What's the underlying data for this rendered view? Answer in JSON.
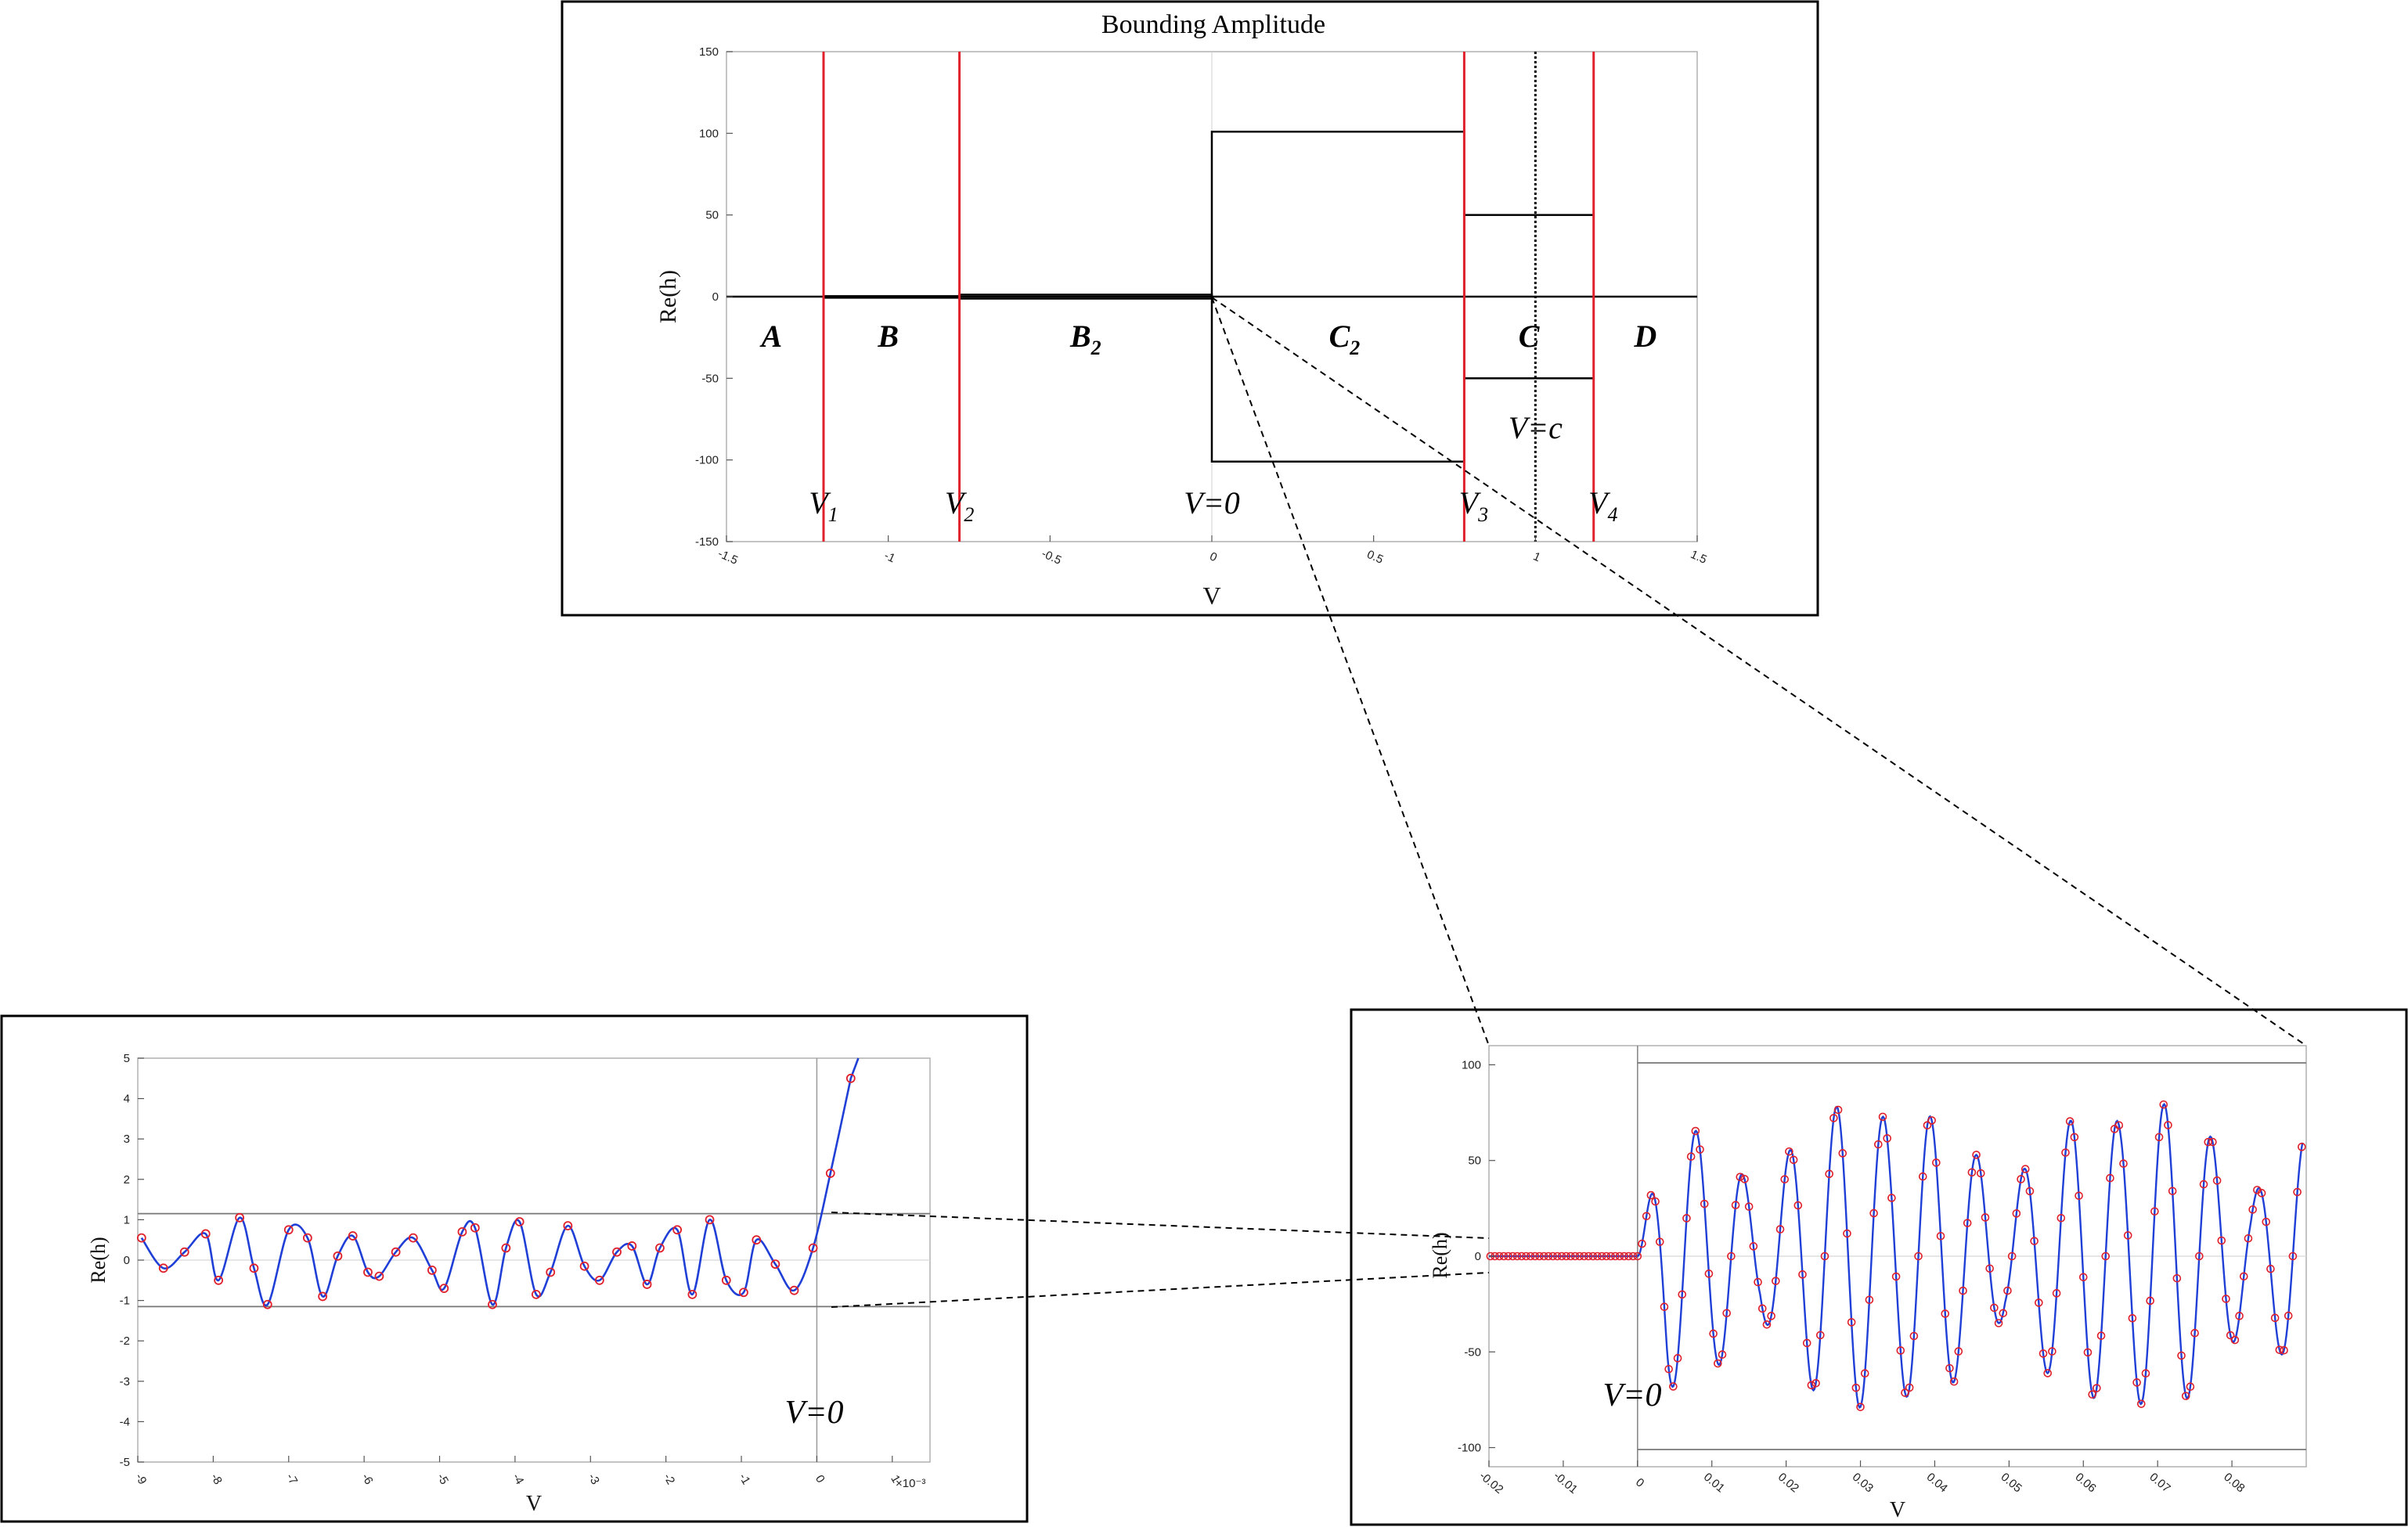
{
  "chart_data": [
    {
      "id": "main",
      "type": "line",
      "title": "Bounding Amplitude",
      "xlabel": "V",
      "ylabel": "Re(h)",
      "xlim": [
        -1.5,
        1.5
      ],
      "ylim": [
        -150,
        150
      ],
      "xticks": [
        "-1.5",
        "-1",
        "-0.5",
        "0",
        "0.5",
        "1",
        "1.5"
      ],
      "yticks": [
        "150",
        "100",
        "50",
        "0",
        "-50",
        "-100",
        "-150"
      ],
      "xtick_values": [
        -1.5,
        -1,
        -0.5,
        0,
        0.5,
        1,
        1.5
      ],
      "ytick_values": [
        150,
        100,
        50,
        0,
        -50,
        -100,
        -150
      ],
      "red_lines": [
        {
          "x": -1.2,
          "label": "V1"
        },
        {
          "x": -0.78,
          "label": "V2"
        },
        {
          "x": 0.78,
          "label": "V3"
        },
        {
          "x": 1.18,
          "label": "V4"
        }
      ],
      "dotted_line": {
        "x": 1.0,
        "label": "V=c"
      },
      "zero_label": "V=0",
      "envelope_boxes": [
        {
          "x0": -1.2,
          "x1": -0.78,
          "y0": -0.3,
          "y1": 0.3
        },
        {
          "x0": -0.78,
          "x1": 0,
          "y0": -1.2,
          "y1": 1.2
        },
        {
          "x0": 0,
          "x1": 0.78,
          "y0": -101,
          "y1": 101
        },
        {
          "x0": 0.78,
          "x1": 1.18,
          "y0": -50,
          "y1": 50
        }
      ],
      "regions": [
        {
          "label": "A",
          "sub": "",
          "x": -1.36
        },
        {
          "label": "B",
          "sub": "",
          "x": -1.0
        },
        {
          "label": "B",
          "sub": "2",
          "x": -0.39
        },
        {
          "label": "C",
          "sub": "2",
          "x": 0.41
        },
        {
          "label": "C",
          "sub": "",
          "x": 0.98
        },
        {
          "label": "D",
          "sub": "",
          "x": 1.34
        }
      ]
    },
    {
      "id": "zoom_left",
      "type": "line",
      "xlabel": "V",
      "ylabel": "Re(h)",
      "xlim": [
        -9,
        1.5
      ],
      "ylim": [
        -5,
        5
      ],
      "x_multiplier": "×10⁻³",
      "xticks": [
        "-9",
        "-8",
        "-7",
        "-6",
        "-5",
        "-4",
        "-3",
        "-2",
        "-1",
        "0",
        "1"
      ],
      "xtick_values": [
        -9,
        -8,
        -7,
        -6,
        -5,
        -4,
        -3,
        -2,
        -1,
        0,
        1
      ],
      "yticks": [
        "5",
        "4",
        "3",
        "2",
        "1",
        "0",
        "-1",
        "-2",
        "-3",
        "-4",
        "-5"
      ],
      "ytick_values": [
        5,
        4,
        3,
        2,
        1,
        0,
        -1,
        -2,
        -3,
        -4,
        -5
      ],
      "envelope": [
        -1.15,
        1.15
      ],
      "label": "V=0",
      "series_color": "#1f3fd6",
      "marker_color": "#e0202a",
      "marker_values": [
        [
          -8.95,
          0.55
        ],
        [
          -8.66,
          -0.2
        ],
        [
          -8.38,
          0.2
        ],
        [
          -8.1,
          0.65
        ],
        [
          -7.93,
          -0.5
        ],
        [
          -7.65,
          1.05
        ],
        [
          -7.46,
          -0.2
        ],
        [
          -7.28,
          -1.1
        ],
        [
          -7.0,
          0.75
        ],
        [
          -6.75,
          0.55
        ],
        [
          -6.55,
          -0.9
        ],
        [
          -6.35,
          0.1
        ],
        [
          -6.15,
          0.6
        ],
        [
          -5.95,
          -0.3
        ],
        [
          -5.8,
          -0.4
        ],
        [
          -5.58,
          0.2
        ],
        [
          -5.35,
          0.55
        ],
        [
          -5.1,
          -0.25
        ],
        [
          -4.94,
          -0.7
        ],
        [
          -4.7,
          0.7
        ],
        [
          -4.53,
          0.8
        ],
        [
          -4.3,
          -1.1
        ],
        [
          -4.12,
          0.3
        ],
        [
          -3.94,
          0.95
        ],
        [
          -3.72,
          -0.85
        ],
        [
          -3.53,
          -0.3
        ],
        [
          -3.3,
          0.85
        ],
        [
          -3.08,
          -0.15
        ],
        [
          -2.88,
          -0.5
        ],
        [
          -2.65,
          0.2
        ],
        [
          -2.45,
          0.35
        ],
        [
          -2.25,
          -0.6
        ],
        [
          -2.08,
          0.3
        ],
        [
          -1.85,
          0.75
        ],
        [
          -1.65,
          -0.85
        ],
        [
          -1.42,
          1.0
        ],
        [
          -1.2,
          -0.5
        ],
        [
          -0.97,
          -0.8
        ],
        [
          -0.8,
          0.5
        ],
        [
          -0.55,
          -0.1
        ],
        [
          -0.3,
          -0.75
        ],
        [
          -0.05,
          0.3
        ],
        [
          0.18,
          2.15
        ],
        [
          0.45,
          4.5
        ]
      ]
    },
    {
      "id": "zoom_right",
      "type": "line",
      "xlabel": "V",
      "ylabel": "Re(h)",
      "xlim": [
        -0.02,
        0.09
      ],
      "ylim": [
        -110,
        110
      ],
      "xticks": [
        "-0.02",
        "-0.01",
        "0",
        "0.01",
        "0.02",
        "0.03",
        "0.04",
        "0.05",
        "0.06",
        "0.07",
        "0.08"
      ],
      "xtick_values": [
        -0.02,
        -0.01,
        0,
        0.01,
        0.02,
        0.03,
        0.04,
        0.05,
        0.06,
        0.07,
        0.08
      ],
      "yticks": [
        "100",
        "50",
        "0",
        "-50",
        "-100"
      ],
      "ytick_values": [
        100,
        50,
        0,
        -50,
        -100
      ],
      "envelope": [
        -101,
        101
      ],
      "label": "V=0",
      "series_color": "#1f3fd6",
      "marker_color": "#e0202a"
    }
  ]
}
